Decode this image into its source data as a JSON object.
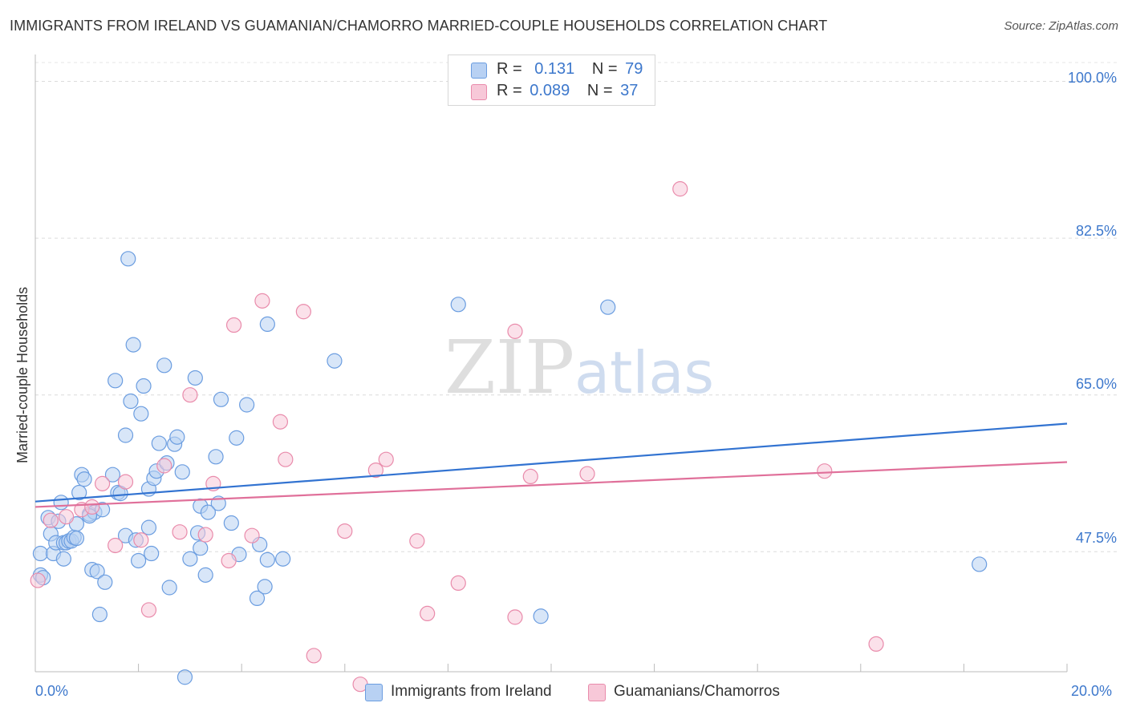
{
  "title": "IMMIGRANTS FROM IRELAND VS GUAMANIAN/CHAMORRO MARRIED-COUPLE HOUSEHOLDS CORRELATION CHART",
  "source": "Source: ZipAtlas.com",
  "watermark": {
    "zip": "ZIP",
    "atlas": "atlas"
  },
  "legend": {
    "rows": [
      {
        "r_label": "R =",
        "r_value": "0.131",
        "n_label": "N =",
        "n_value": "79",
        "color": "#aac8f0"
      },
      {
        "r_label": "R =",
        "r_value": "0.089",
        "n_label": "N =",
        "n_value": "37",
        "color": "#f5b8cb"
      }
    ]
  },
  "chart_data": {
    "type": "scatter",
    "title": "IMMIGRANTS FROM IRELAND VS GUAMANIAN/CHAMORRO MARRIED-COUPLE HOUSEHOLDS CORRELATION CHART",
    "xlabel": "",
    "ylabel": "Married-couple Households",
    "xlim": [
      0,
      20
    ],
    "ylim": [
      35,
      103
    ],
    "x_tick_labels": [
      "0.0%",
      "20.0%"
    ],
    "y_ticks": [
      100.0,
      82.5,
      65.0,
      47.5
    ],
    "y_tick_labels": [
      "100.0%",
      "82.5%",
      "65.0%",
      "47.5%"
    ],
    "series": [
      {
        "name": "Immigrants from Ireland",
        "color": "#6b9de0",
        "fill": "#b8d1f3",
        "trend": {
          "x": [
            0,
            20
          ],
          "y": [
            53.1,
            61.8
          ]
        },
        "points": [
          [
            0.1,
            47.3
          ],
          [
            0.1,
            44.9
          ],
          [
            0.15,
            44.6
          ],
          [
            0.25,
            51.3
          ],
          [
            0.3,
            49.5
          ],
          [
            0.35,
            47.3
          ],
          [
            0.4,
            48.5
          ],
          [
            0.45,
            50.9
          ],
          [
            0.5,
            53.0
          ],
          [
            0.55,
            48.5
          ],
          [
            0.6,
            48.5
          ],
          [
            0.65,
            48.7
          ],
          [
            0.7,
            48.7
          ],
          [
            0.75,
            49.1
          ],
          [
            0.8,
            50.6
          ],
          [
            0.85,
            54.1
          ],
          [
            0.9,
            56.1
          ],
          [
            0.95,
            55.6
          ],
          [
            1.05,
            51.7
          ],
          [
            1.1,
            45.5
          ],
          [
            1.15,
            51.9
          ],
          [
            1.2,
            45.3
          ],
          [
            1.25,
            40.5
          ],
          [
            1.3,
            52.2
          ],
          [
            1.35,
            44.1
          ],
          [
            1.5,
            56.1
          ],
          [
            1.55,
            66.6
          ],
          [
            1.6,
            54.1
          ],
          [
            1.65,
            54.0
          ],
          [
            1.75,
            49.3
          ],
          [
            1.75,
            60.5
          ],
          [
            1.8,
            80.2
          ],
          [
            1.85,
            64.3
          ],
          [
            1.9,
            70.6
          ],
          [
            1.95,
            48.8
          ],
          [
            2.0,
            46.5
          ],
          [
            2.05,
            62.9
          ],
          [
            2.1,
            66.0
          ],
          [
            2.2,
            54.5
          ],
          [
            2.25,
            47.3
          ],
          [
            2.3,
            55.7
          ],
          [
            2.35,
            56.5
          ],
          [
            2.4,
            59.6
          ],
          [
            2.5,
            68.3
          ],
          [
            2.55,
            57.4
          ],
          [
            2.6,
            43.5
          ],
          [
            2.7,
            59.5
          ],
          [
            2.75,
            60.3
          ],
          [
            2.85,
            56.4
          ],
          [
            2.9,
            33.5
          ],
          [
            3.0,
            46.7
          ],
          [
            3.1,
            66.9
          ],
          [
            3.15,
            49.6
          ],
          [
            3.2,
            52.6
          ],
          [
            3.3,
            44.9
          ],
          [
            3.5,
            58.1
          ],
          [
            3.55,
            52.9
          ],
          [
            3.6,
            64.5
          ],
          [
            3.8,
            50.7
          ],
          [
            3.9,
            60.2
          ],
          [
            3.95,
            47.2
          ],
          [
            4.1,
            63.9
          ],
          [
            4.3,
            42.3
          ],
          [
            4.35,
            48.3
          ],
          [
            4.45,
            43.6
          ],
          [
            4.5,
            72.9
          ],
          [
            4.5,
            46.6
          ],
          [
            4.8,
            46.7
          ],
          [
            5.8,
            68.8
          ],
          [
            8.2,
            75.1
          ],
          [
            9.8,
            40.3
          ],
          [
            11.1,
            74.8
          ],
          [
            18.3,
            46.1
          ],
          [
            3.35,
            51.9
          ],
          [
            0.55,
            46.7
          ],
          [
            1.05,
            51.5
          ],
          [
            3.2,
            47.9
          ],
          [
            0.8,
            49.0
          ],
          [
            2.2,
            50.2
          ]
        ]
      },
      {
        "name": "Guamanians/Chamorros",
        "color": "#e98bab",
        "fill": "#f7c8d8",
        "trend": {
          "x": [
            0,
            20
          ],
          "y": [
            52.5,
            57.5
          ]
        },
        "points": [
          [
            0.05,
            44.3
          ],
          [
            0.3,
            51.0
          ],
          [
            0.6,
            51.4
          ],
          [
            0.9,
            52.2
          ],
          [
            1.1,
            52.5
          ],
          [
            1.3,
            55.1
          ],
          [
            1.55,
            48.2
          ],
          [
            1.75,
            55.3
          ],
          [
            2.05,
            48.8
          ],
          [
            2.2,
            41.0
          ],
          [
            2.5,
            57.1
          ],
          [
            2.8,
            49.7
          ],
          [
            3.0,
            65.0
          ],
          [
            3.3,
            49.4
          ],
          [
            3.45,
            55.1
          ],
          [
            3.75,
            46.5
          ],
          [
            3.85,
            72.8
          ],
          [
            4.2,
            49.3
          ],
          [
            4.4,
            75.5
          ],
          [
            4.75,
            62.0
          ],
          [
            4.85,
            57.8
          ],
          [
            5.2,
            74.3
          ],
          [
            5.4,
            35.9
          ],
          [
            6.0,
            49.8
          ],
          [
            6.3,
            32.7
          ],
          [
            6.6,
            56.6
          ],
          [
            6.8,
            57.8
          ],
          [
            7.4,
            48.7
          ],
          [
            7.6,
            40.6
          ],
          [
            8.2,
            44.0
          ],
          [
            9.3,
            72.1
          ],
          [
            9.3,
            40.2
          ],
          [
            9.6,
            55.9
          ],
          [
            10.7,
            56.2
          ],
          [
            12.5,
            88.0
          ],
          [
            15.3,
            56.5
          ],
          [
            16.3,
            37.2
          ]
        ]
      }
    ]
  },
  "bottom_legend": [
    {
      "label": "Immigrants from Ireland"
    },
    {
      "label": "Guamanians/Chamorros"
    }
  ]
}
